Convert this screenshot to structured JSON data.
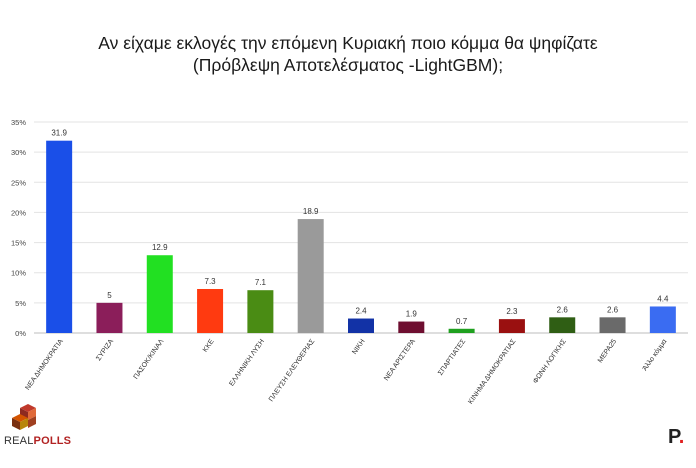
{
  "chart_data": {
    "type": "bar",
    "title": "Αν είχαμε εκλογές την επόμενη Κυριακή ποιο κόμμα θα ψηφίζατε",
    "subtitle": "(Πρόβλεψη Αποτελέσματος -LightGBM);",
    "xlabel": "",
    "ylabel": "",
    "ylim": [
      0,
      35
    ],
    "yticks": [
      "0%",
      "5%",
      "10%",
      "15%",
      "20%",
      "25%",
      "30%",
      "35%"
    ],
    "grid": true,
    "categories": [
      "ΝΕΑ ΔΗΜΟΚΡΑΤΙΑ",
      "ΣΥΡΙΖΑ",
      "ΠΑΣΟΚ/ΚΙΝΑΛ",
      "ΚΚΕ",
      "ΕΛΛΗΝΙΚΗ ΛΥΣΗ",
      "ΠΛΕΥΣΗ ΕΛΕΥΘΕΡΙΑΣ",
      "ΝΙΚΗ",
      "ΝΕΑ ΑΡΙΣΤΕΡΑ",
      "ΣΠΑΡΤΙΑΤΕΣ",
      "ΚΙΝΗΜΑ ΔΗΜΟΚΡΑΤΙΑΣ",
      "ΦΩΝΗ ΛΟΓΙΚΗΣ",
      "ΜΕΡΑ25",
      "Άλλο κόμμα"
    ],
    "values": [
      31.9,
      5,
      12.9,
      7.3,
      7.1,
      18.9,
      2.4,
      1.9,
      0.7,
      2.3,
      2.6,
      2.6,
      4.4
    ],
    "value_labels": [
      "31.9",
      "5",
      "12.9",
      "7.3",
      "7.1",
      "18.9",
      "2.4",
      "1.9",
      "0.7",
      "2.3",
      "2.6",
      "2.6",
      "4.4"
    ],
    "colors": [
      "#1a4fe8",
      "#8b1e5a",
      "#22e022",
      "#ff3a10",
      "#4a8c14",
      "#9a9a9a",
      "#1232a6",
      "#6e0e30",
      "#1fa01f",
      "#9a1010",
      "#2f5e14",
      "#6a6a6a",
      "#3a6cf2"
    ]
  },
  "branding": {
    "left_logo_text_a": "REAL",
    "left_logo_text_b": "POLLS",
    "right_logo_letter": "P",
    "right_logo_dot": "."
  }
}
